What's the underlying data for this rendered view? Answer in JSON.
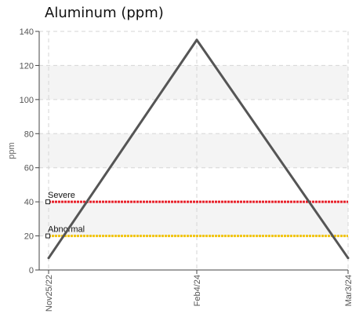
{
  "chart_data": {
    "type": "line",
    "title": "Aluminum (ppm)",
    "ylabel": "ppm",
    "xlabel": "",
    "ylim": [
      0,
      140
    ],
    "yticks": [
      0,
      20,
      40,
      60,
      80,
      100,
      120,
      140
    ],
    "grid": true,
    "x": [
      "Nov25/22",
      "Feb4/24",
      "Mar3/24"
    ],
    "series": [
      {
        "values": [
          7,
          135,
          7
        ],
        "color": "#555555"
      }
    ],
    "reference_lines": [
      {
        "label": "Severe",
        "value": 40,
        "color": "#e8202a"
      },
      {
        "label": "Abnormal",
        "value": 20,
        "color": "#f2c40f"
      }
    ]
  }
}
